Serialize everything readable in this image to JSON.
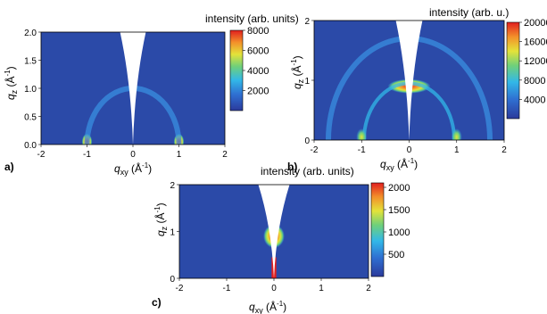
{
  "chart_data": [
    {
      "panel_label": "a)",
      "type": "heatmap",
      "title": "intensity (arb. units)",
      "xlabel_main": "q",
      "xlabel_sub": "xy",
      "xlabel_unit": " (Å",
      "ylabel_main": "q",
      "ylabel_sub": "z",
      "ylabel_unit": " (Å",
      "xlim": [
        -2,
        2
      ],
      "ylim": [
        0,
        2
      ],
      "xticks": [
        -2,
        -1,
        0,
        1,
        2
      ],
      "yticks": [
        "0.0",
        "0.5",
        "1.0",
        "1.5",
        "2.0"
      ],
      "colorbar_range": [
        0,
        8000
      ],
      "colorbar_ticks": [
        2000,
        4000,
        6000,
        8000
      ],
      "features": [
        {
          "kind": "peak",
          "qxy": -1.0,
          "qz": 0.05,
          "intensity": 8000
        },
        {
          "kind": "peak",
          "qxy": 1.0,
          "qz": 0.05,
          "intensity": 8000
        },
        {
          "kind": "ring",
          "radius": 1.0,
          "intensity": 1500
        }
      ]
    },
    {
      "panel_label": "b)",
      "type": "heatmap",
      "title": "intensity (arb. u.)",
      "xlabel_main": "q",
      "xlabel_sub": "xy",
      "xlabel_unit": " (Å",
      "ylabel_main": "q",
      "ylabel_sub": "z",
      "ylabel_unit": " (Å",
      "xlim": [
        -2,
        2
      ],
      "ylim": [
        0,
        2
      ],
      "xticks": [
        -2,
        -1,
        0,
        1,
        2
      ],
      "yticks": [
        "0",
        "1",
        "2"
      ],
      "colorbar_range": [
        0,
        20000
      ],
      "colorbar_ticks": [
        4000,
        8000,
        12000,
        16000,
        20000
      ],
      "features": [
        {
          "kind": "arc",
          "qxy": 0.0,
          "qz": 0.9,
          "intensity": 20000
        },
        {
          "kind": "ring",
          "radius": 0.95,
          "intensity": 9000
        },
        {
          "kind": "ring",
          "radius": 1.7,
          "intensity": 5000
        },
        {
          "kind": "peak",
          "qxy": -1.0,
          "qz": 0.05,
          "intensity": 9000
        },
        {
          "kind": "peak",
          "qxy": 1.0,
          "qz": 0.05,
          "intensity": 9000
        }
      ]
    },
    {
      "panel_label": "c)",
      "type": "heatmap",
      "title": "intensity (arb. units)",
      "xlabel_main": "q",
      "xlabel_sub": "xy",
      "xlabel_unit": " (Å",
      "ylabel_main": "q",
      "ylabel_sub": "z",
      "ylabel_unit": " (Å",
      "xlim": [
        -2,
        2
      ],
      "ylim": [
        0,
        2
      ],
      "xticks": [
        -2,
        -1,
        0,
        1,
        2
      ],
      "yticks": [
        "0",
        "1",
        "2"
      ],
      "colorbar_range": [
        0,
        2100
      ],
      "colorbar_ticks": [
        500,
        1000,
        1500,
        2000
      ],
      "features": [
        {
          "kind": "peak",
          "qxy": 0.0,
          "qz": 0.9,
          "intensity": 2000
        },
        {
          "kind": "streak",
          "qxy": 0.0,
          "qz_from": 0.0,
          "qz_to": 0.45,
          "intensity": 2000
        }
      ]
    }
  ]
}
